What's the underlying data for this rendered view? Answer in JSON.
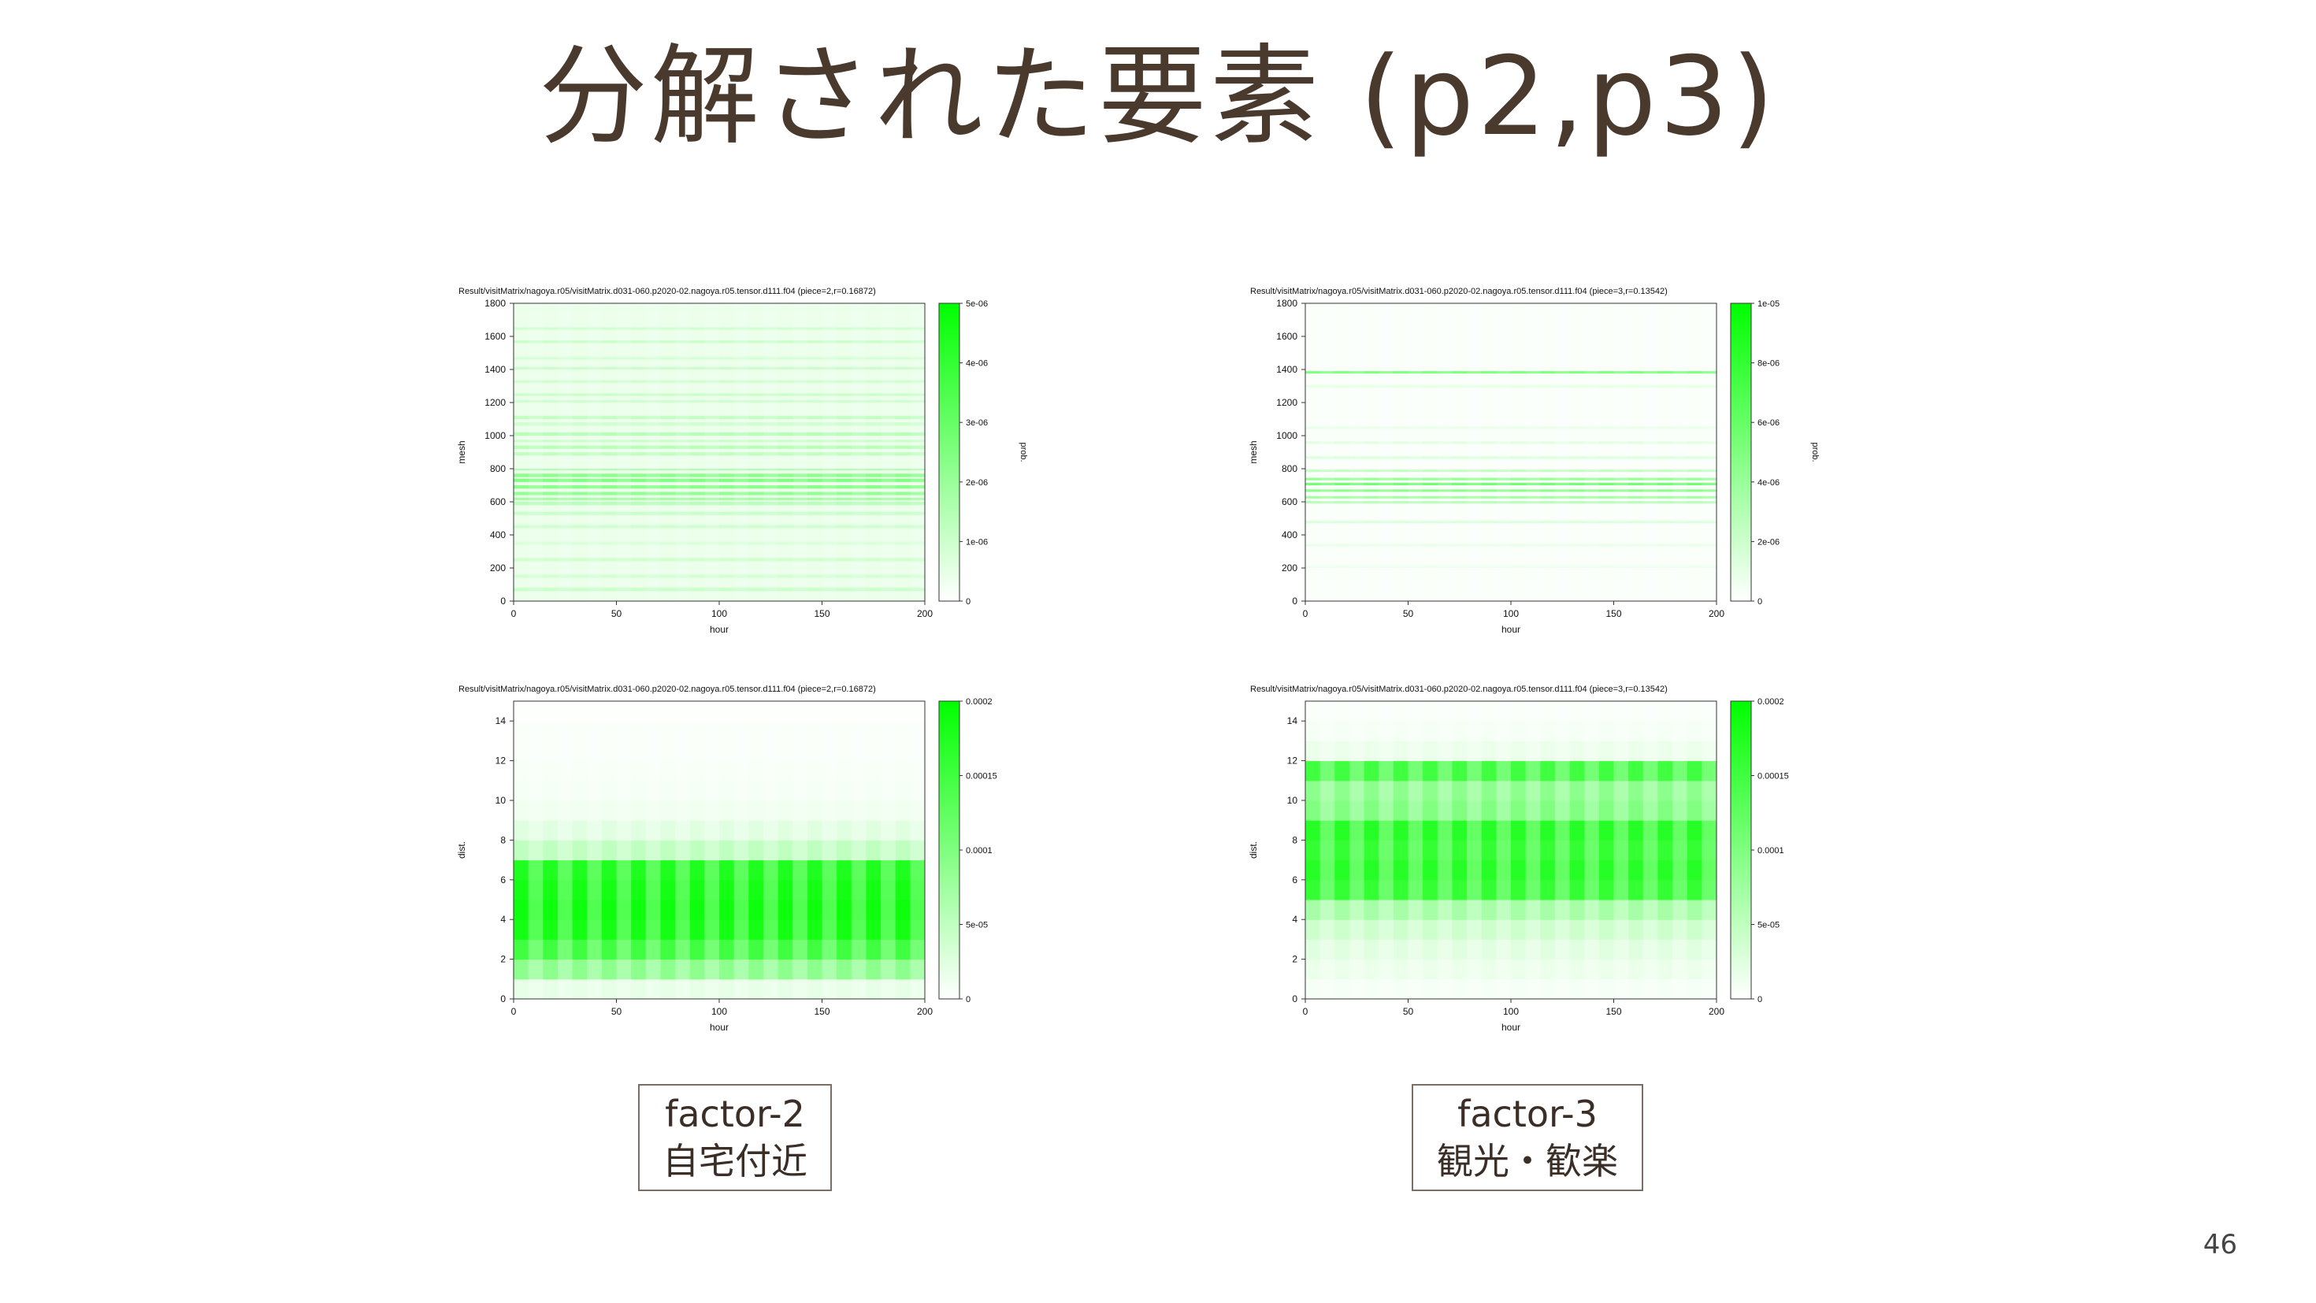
{
  "slide": {
    "title": "分解された要素 (p2,p3)",
    "page_number": "46",
    "factor_labels": [
      {
        "line1": "factor-2",
        "line2": "自宅付近"
      },
      {
        "line1": "factor-3",
        "line2": "観光・歓楽"
      }
    ]
  },
  "colors": {
    "high": "#00ff00",
    "low": "#ffffff",
    "text": "#4a3a2e"
  },
  "chart_data": [
    {
      "type": "heatmap",
      "title": "Result/visitMatrix/nagoya.r05/visitMatrix.d031-060.p2020-02.nagoya.r05.tensor.d111.f04 (piece=2,r=0.16872)",
      "xlabel": "hour",
      "ylabel": "mesh",
      "colorbar_label": "prob.",
      "xlim": [
        0,
        200
      ],
      "ylim": [
        0,
        1800
      ],
      "x_ticks": [
        "0",
        "50",
        "100",
        "150",
        "200"
      ],
      "y_ticks": [
        "0",
        "200",
        "400",
        "600",
        "800",
        "1000",
        "1200",
        "1400",
        "1600",
        "1800"
      ],
      "colorbar_ticks": [
        "0",
        "1e-06",
        "2e-06",
        "3e-06",
        "4e-06",
        "5e-06"
      ],
      "colorbar_range": [
        0,
        5e-06
      ],
      "pattern": "horizontal",
      "bands": [
        {
          "from": 0,
          "to": 1800,
          "level": 0.08
        },
        {
          "from": 60,
          "to": 80,
          "level": 0.22
        },
        {
          "from": 140,
          "to": 160,
          "level": 0.18
        },
        {
          "from": 240,
          "to": 260,
          "level": 0.2
        },
        {
          "from": 340,
          "to": 360,
          "level": 0.15
        },
        {
          "from": 440,
          "to": 460,
          "level": 0.2
        },
        {
          "from": 520,
          "to": 540,
          "level": 0.22
        },
        {
          "from": 580,
          "to": 600,
          "level": 0.3
        },
        {
          "from": 610,
          "to": 625,
          "level": 0.4
        },
        {
          "from": 640,
          "to": 660,
          "level": 0.45
        },
        {
          "from": 680,
          "to": 700,
          "level": 0.5
        },
        {
          "from": 720,
          "to": 740,
          "level": 0.55
        },
        {
          "from": 750,
          "to": 770,
          "level": 0.5
        },
        {
          "from": 790,
          "to": 800,
          "level": 0.35
        },
        {
          "from": 880,
          "to": 900,
          "level": 0.25
        },
        {
          "from": 920,
          "to": 940,
          "level": 0.3
        },
        {
          "from": 960,
          "to": 975,
          "level": 0.22
        },
        {
          "from": 1000,
          "to": 1020,
          "level": 0.3
        },
        {
          "from": 1060,
          "to": 1080,
          "level": 0.2
        },
        {
          "from": 1100,
          "to": 1120,
          "level": 0.25
        },
        {
          "from": 1200,
          "to": 1215,
          "level": 0.2
        },
        {
          "from": 1240,
          "to": 1255,
          "level": 0.22
        },
        {
          "from": 1320,
          "to": 1335,
          "level": 0.2
        },
        {
          "from": 1400,
          "to": 1415,
          "level": 0.22
        },
        {
          "from": 1460,
          "to": 1475,
          "level": 0.18
        },
        {
          "from": 1560,
          "to": 1575,
          "level": 0.22
        },
        {
          "from": 1640,
          "to": 1655,
          "level": 0.2
        }
      ]
    },
    {
      "type": "heatmap",
      "title": "Result/visitMatrix/nagoya.r05/visitMatrix.d031-060.p2020-02.nagoya.r05.tensor.d111.f04 (piece=3,r=0.13542)",
      "xlabel": "hour",
      "ylabel": "mesh",
      "colorbar_label": "prob.",
      "xlim": [
        0,
        200
      ],
      "ylim": [
        0,
        1800
      ],
      "x_ticks": [
        "0",
        "50",
        "100",
        "150",
        "200"
      ],
      "y_ticks": [
        "0",
        "200",
        "400",
        "600",
        "800",
        "1000",
        "1200",
        "1400",
        "1600",
        "1800"
      ],
      "colorbar_ticks": [
        "0",
        "2e-06",
        "4e-06",
        "6e-06",
        "8e-06",
        "1e-05"
      ],
      "colorbar_range": [
        0,
        1e-05
      ],
      "pattern": "horizontal",
      "bands": [
        {
          "from": 0,
          "to": 1800,
          "level": 0.02
        },
        {
          "from": 200,
          "to": 215,
          "level": 0.08
        },
        {
          "from": 330,
          "to": 345,
          "level": 0.1
        },
        {
          "from": 470,
          "to": 485,
          "level": 0.15
        },
        {
          "from": 590,
          "to": 605,
          "level": 0.3
        },
        {
          "from": 620,
          "to": 635,
          "level": 0.4
        },
        {
          "from": 660,
          "to": 675,
          "level": 0.5
        },
        {
          "from": 700,
          "to": 715,
          "level": 0.6
        },
        {
          "from": 730,
          "to": 745,
          "level": 0.45
        },
        {
          "from": 780,
          "to": 795,
          "level": 0.25
        },
        {
          "from": 860,
          "to": 875,
          "level": 0.15
        },
        {
          "from": 950,
          "to": 965,
          "level": 0.12
        },
        {
          "from": 1040,
          "to": 1055,
          "level": 0.1
        },
        {
          "from": 1290,
          "to": 1305,
          "level": 0.1
        },
        {
          "from": 1375,
          "to": 1390,
          "level": 0.55
        }
      ]
    },
    {
      "type": "heatmap",
      "title": "Result/visitMatrix/nagoya.r05/visitMatrix.d031-060.p2020-02.nagoya.r05.tensor.d111.f04 (piece=2,r=0.16872)",
      "xlabel": "hour",
      "ylabel": "dist.",
      "xlim": [
        0,
        200
      ],
      "ylim": [
        0,
        15
      ],
      "x_ticks": [
        "0",
        "50",
        "100",
        "150",
        "200"
      ],
      "y_ticks": [
        "0",
        "2",
        "4",
        "6",
        "8",
        "10",
        "12",
        "14"
      ],
      "colorbar_ticks": [
        "0",
        "5e-05",
        "0.0001",
        "0.00015",
        "0.0002"
      ],
      "colorbar_range": [
        0,
        0.0002
      ],
      "pattern": "rows",
      "rows": [
        0.1,
        0.45,
        0.75,
        0.92,
        0.95,
        0.92,
        0.88,
        0.25,
        0.12,
        0.06,
        0.04,
        0.03,
        0.02,
        0.02,
        0.01
      ]
    },
    {
      "type": "heatmap",
      "title": "Result/visitMatrix/nagoya.r05/visitMatrix.d031-060.p2020-02.nagoya.r05.tensor.d111.f04 (piece=3,r=0.13542)",
      "xlabel": "hour",
      "ylabel": "dist.",
      "xlim": [
        0,
        200
      ],
      "ylim": [
        0,
        15
      ],
      "x_ticks": [
        "0",
        "50",
        "100",
        "150",
        "200"
      ],
      "y_ticks": [
        "0",
        "2",
        "4",
        "6",
        "8",
        "10",
        "12",
        "14"
      ],
      "colorbar_ticks": [
        "0",
        "5e-05",
        "0.0001",
        "0.00015",
        "0.0002"
      ],
      "colorbar_range": [
        0,
        0.0002
      ],
      "pattern": "rows",
      "rows": [
        0.04,
        0.08,
        0.12,
        0.2,
        0.35,
        0.8,
        0.85,
        0.8,
        0.85,
        0.5,
        0.45,
        0.75,
        0.08,
        0.04,
        0.02
      ]
    }
  ]
}
